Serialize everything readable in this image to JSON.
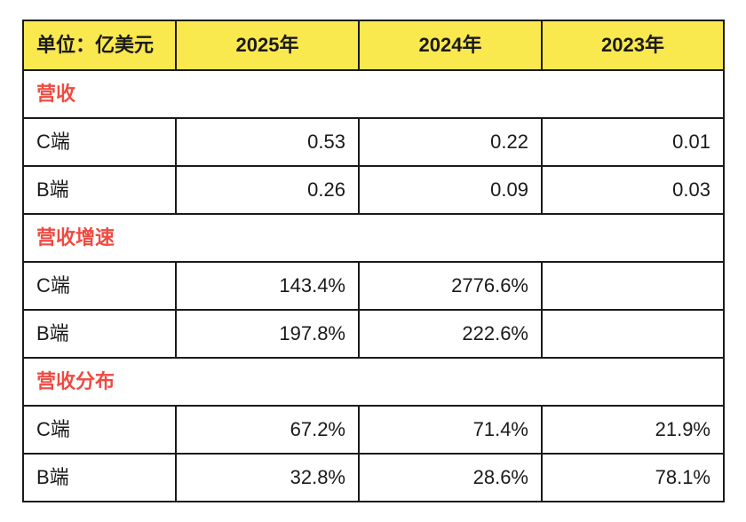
{
  "chart_data": {
    "type": "table",
    "title": "单位：亿美元",
    "columns": [
      "单位：亿美元",
      "2025年",
      "2024年",
      "2023年"
    ],
    "sections": [
      {
        "title": "营收",
        "rows": [
          {
            "label": "C端",
            "values": [
              "0.53",
              "0.22",
              "0.01"
            ]
          },
          {
            "label": "B端",
            "values": [
              "0.26",
              "0.09",
              "0.03"
            ]
          }
        ]
      },
      {
        "title": "营收增速",
        "rows": [
          {
            "label": "C端",
            "values": [
              "143.4%",
              "2776.6%",
              ""
            ]
          },
          {
            "label": "B端",
            "values": [
              "197.8%",
              "222.6%",
              ""
            ]
          }
        ]
      },
      {
        "title": "营收分布",
        "rows": [
          {
            "label": "C端",
            "values": [
              "67.2%",
              "71.4%",
              "21.9%"
            ]
          },
          {
            "label": "B端",
            "values": [
              "32.8%",
              "28.6%",
              "78.1%"
            ]
          }
        ]
      }
    ]
  },
  "table": {
    "header": {
      "unit": "单位：亿美元",
      "years": [
        "2025年",
        "2024年",
        "2023年"
      ]
    },
    "colors": {
      "header_bg": "#fae84f",
      "section_title": "#f04a41",
      "border": "#1a1a1a",
      "text": "#1a1a1a"
    }
  }
}
